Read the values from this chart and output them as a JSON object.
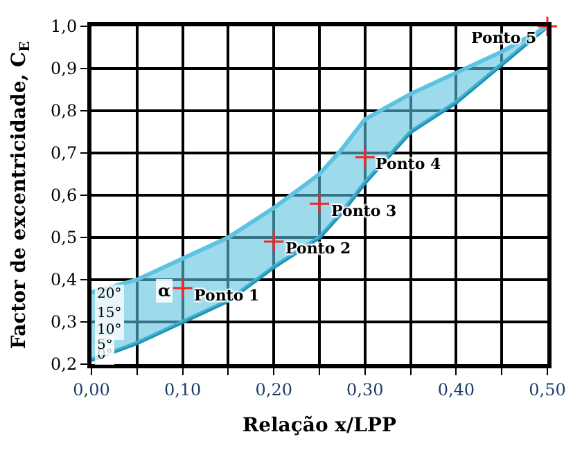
{
  "chart_data": {
    "type": "line",
    "xlabel": "Relação x/LPP",
    "ylabel": "Factor de excentricidade, C$_{E}$",
    "x": [
      0,
      0.05,
      0.1,
      0.15,
      0.2,
      0.25,
      0.275,
      0.3,
      0.35,
      0.4,
      0.45,
      0.5
    ],
    "series": [
      {
        "color": "#1e93b4",
        "values": [
          0.21,
          0.25,
          0.3,
          0.35,
          0.43,
          0.5,
          0.56,
          0.63,
          0.75,
          0.82,
          0.91,
          1.0
        ]
      },
      {
        "color": "#5cc3e0",
        "values": [
          0.37,
          0.4,
          0.45,
          0.5,
          0.57,
          0.65,
          0.71,
          0.78,
          0.84,
          0.89,
          0.94,
          1.0
        ],
        "lower": [
          0.21,
          0.25,
          0.3,
          0.35,
          0.43,
          0.5,
          0.56,
          0.63,
          0.75,
          0.82,
          0.91,
          1.0
        ],
        "upper": [
          0.37,
          0.4,
          0.45,
          0.5,
          0.57,
          0.65,
          0.71,
          0.78,
          0.84,
          0.89,
          0.94,
          1.0
        ]
      },
      {
        "type": "scatter",
        "color": "#ff2020",
        "marker": "cross",
        "x": [
          0.1,
          0.2,
          0.25,
          0.3,
          0.5
        ],
        "values": [
          0.38,
          0.49,
          0.58,
          0.69,
          1.0
        ]
      }
    ],
    "annotations": [
      {
        "text": "Ponto 1",
        "x": 0.1,
        "y": 0.38
      },
      {
        "text": "Ponto 2",
        "x": 0.2,
        "y": 0.49
      },
      {
        "text": "Ponto 3",
        "x": 0.25,
        "y": 0.58
      },
      {
        "text": "Ponto 4",
        "x": 0.3,
        "y": 0.69
      },
      {
        "text": "Ponto 5",
        "x": 0.5,
        "y": 1.0
      },
      {
        "text": "0°",
        "x": 0,
        "y": 0.22
      },
      {
        "text": "5°",
        "x": 0,
        "y": 0.245
      },
      {
        "text": "10°",
        "x": 0,
        "y": 0.28
      },
      {
        "text": "15°",
        "x": 0,
        "y": 0.32
      },
      {
        "text": "20°",
        "x": 0,
        "y": 0.365
      },
      "α"
    ],
    "xlim": [
      0,
      0.5
    ],
    "xticks": [
      {
        "value": 0,
        "label": "0,00"
      },
      {
        "value": 0.05,
        "label": null
      },
      {
        "value": 0.1,
        "label": "0,10"
      },
      {
        "value": 0.15,
        "label": null
      },
      {
        "value": 0.2,
        "label": "0,20"
      },
      {
        "value": 0.25,
        "label": null
      },
      {
        "value": 0.3,
        "label": "0,30"
      },
      {
        "value": 0.35,
        "label": null
      },
      {
        "value": 0.4,
        "label": "0,40"
      },
      {
        "value": 0.45,
        "label": null
      },
      {
        "value": 0.5,
        "label": "0,50"
      }
    ],
    "ylim": [
      0.2,
      1.0
    ],
    "yticks": [
      {
        "value": 0.2,
        "label": "0,2"
      },
      {
        "value": 0.3,
        "label": "0,3"
      },
      {
        "value": 0.4,
        "label": "0,4"
      },
      {
        "value": 0.5,
        "label": "0,5"
      },
      {
        "value": 0.6,
        "label": "0,6"
      },
      {
        "value": 0.7,
        "label": "0,7"
      },
      {
        "value": 0.8,
        "label": "0,8"
      },
      {
        "value": 0.9,
        "label": "0,9"
      },
      {
        "value": 1.0,
        "label": "1,0"
      }
    ],
    "grid": true,
    "legend": false
  }
}
